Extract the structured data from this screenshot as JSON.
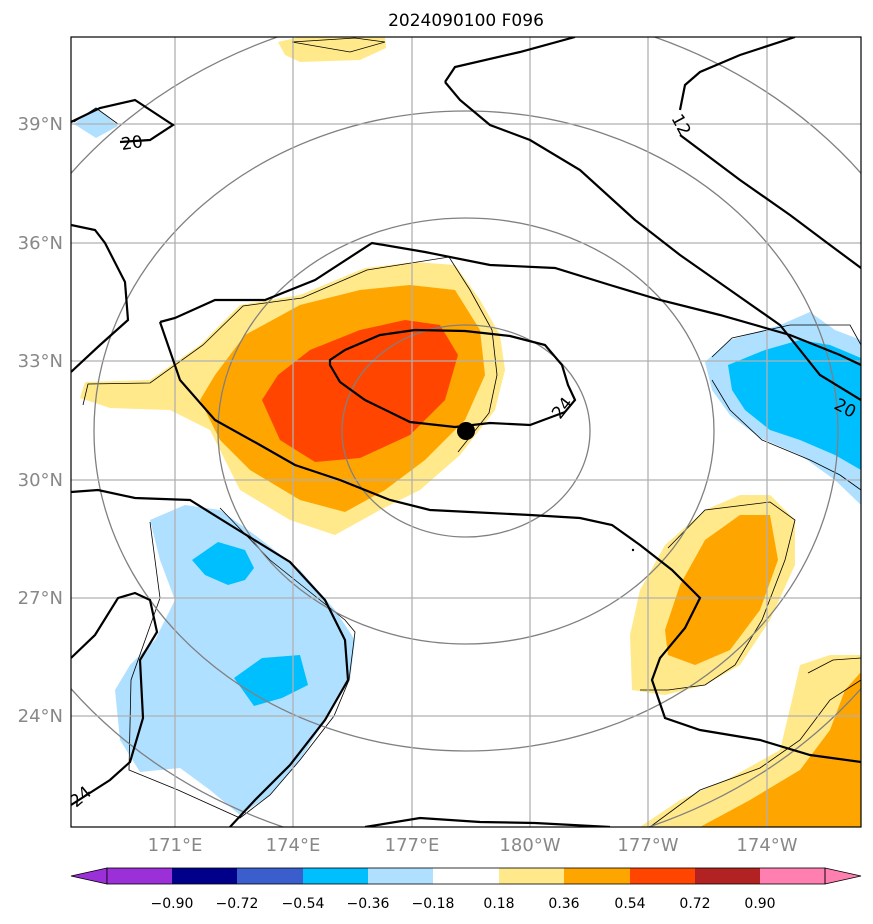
{
  "title": "2024090100 F096",
  "colors": {
    "neg_090": "#9b30d9",
    "neg_072": "#00008b",
    "neg_054": "#3a5fcd",
    "neg_036": "#00bfff",
    "neg_018": "#b0e0ff",
    "neutral": "#ffffff",
    "pos_018": "#ffe98a",
    "pos_036": "#ffa500",
    "pos_054": "#ff4500",
    "pos_072": "#b22222",
    "pos_090": "#ff80b0",
    "contour": "#000000",
    "range_ring": "#808080",
    "grid": "#b0b0b0",
    "axis_label": "#888888"
  },
  "map": {
    "lat_labels": [
      "39°N",
      "36°N",
      "33°N",
      "30°N",
      "27°N",
      "24°N"
    ],
    "lon_labels": [
      "171°E",
      "174°E",
      "177°E",
      "180°W",
      "177°W",
      "174°W"
    ],
    "contour_labels": [
      "20",
      "12",
      "20",
      "24",
      "24"
    ],
    "storm_center": "storm-center-marker"
  },
  "colorbar": {
    "ticks": [
      "−0.90",
      "−0.72",
      "−0.54",
      "−0.36",
      "−0.18",
      "0.18",
      "0.36",
      "0.54",
      "0.72",
      "0.90"
    ]
  }
}
